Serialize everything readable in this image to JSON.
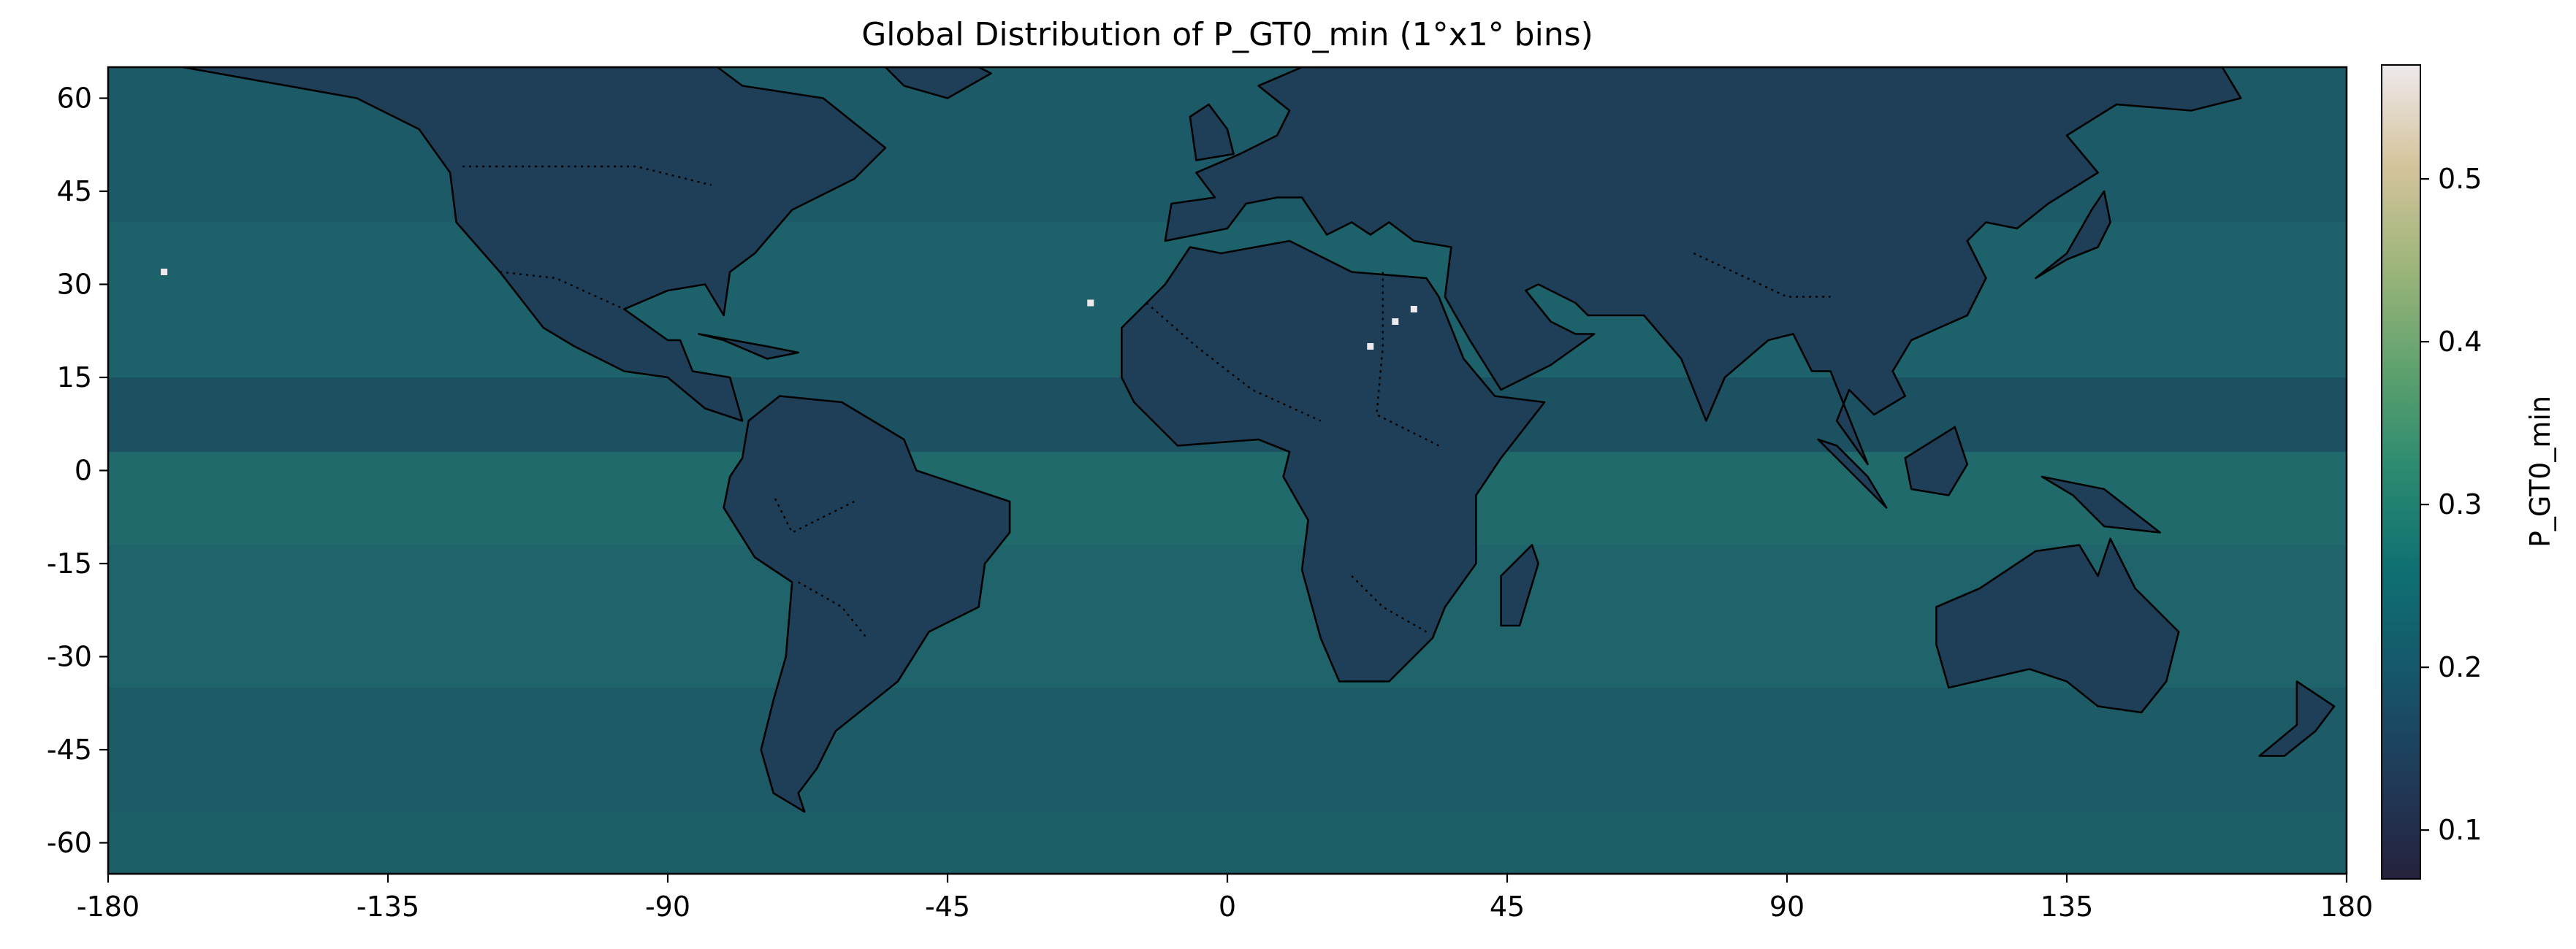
{
  "chart_data": {
    "type": "heatmap",
    "title": "Global Distribution of P_GT0_min (1°x1° bins)",
    "xlim": [
      -180,
      180
    ],
    "ylim": [
      -65,
      65
    ],
    "x_ticks": [
      "-180",
      "-135",
      "-90",
      "-45",
      "0",
      "45",
      "90",
      "135",
      "180"
    ],
    "y_ticks": [
      "60",
      "45",
      "30",
      "15",
      "0",
      "-15",
      "-30",
      "-45",
      "-60"
    ],
    "colorbar": {
      "label": "P_GT0_min",
      "range": [
        0.07,
        0.57
      ],
      "ticks": [
        "0.1",
        "0.2",
        "0.3",
        "0.4",
        "0.5"
      ],
      "colormap": [
        "#25223d",
        "#203b59",
        "#16566a",
        "#0e6f72",
        "#2a8a70",
        "#5ea16e",
        "#9cb57a",
        "#d4c39a",
        "#eee9ec"
      ]
    },
    "ocean_value_typical": 0.25,
    "land_value_typical": 0.19,
    "outlier_points": [
      {
        "lon": -171,
        "lat": 32,
        "value": 0.57
      },
      {
        "lon": -22,
        "lat": 27,
        "value": 0.57
      },
      {
        "lon": 30,
        "lat": 26,
        "value": 0.57
      },
      {
        "lon": 27,
        "lat": 24,
        "value": 0.57
      },
      {
        "lon": 23,
        "lat": 20,
        "value": 0.57
      }
    ],
    "grid": false,
    "coastlines": true,
    "country_borders": "dotted"
  }
}
